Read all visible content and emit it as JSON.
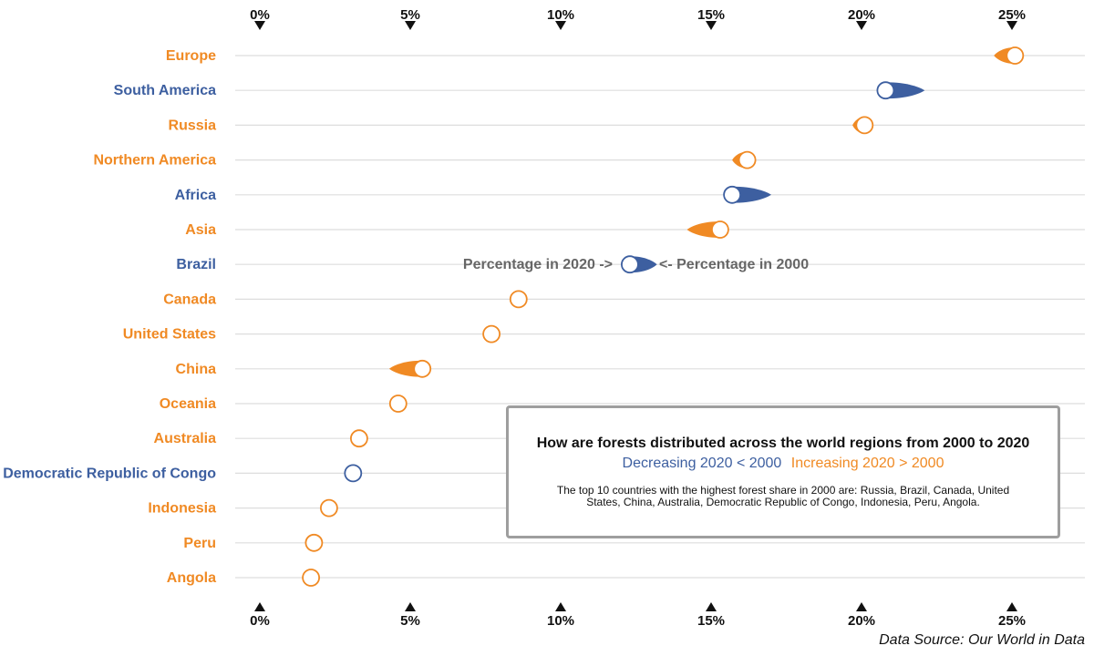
{
  "chart_data": {
    "type": "dumbbell",
    "title": "How are forests distributed across the world regions from 2000 to 2020",
    "legend": {
      "decreasing": "Decreasing 2020 < 2000",
      "increasing": "Increasing 2020 > 2000"
    },
    "note": "The top 10 countries with the highest forest share in 2000 are: Russia, Brazil, Canada, United States, China, Australia, Democratic Republic of Congo, Indonesia, Peru, Angola.",
    "source": "Data Source: Our World in Data",
    "annotations": {
      "left": "Percentage in 2020 ->",
      "right": "<- Percentage in 2000"
    },
    "xticks": [
      0,
      5,
      10,
      15,
      20,
      25
    ],
    "xtick_labels": [
      "0%",
      "5%",
      "10%",
      "15%",
      "20%",
      "25%"
    ],
    "xlim": [
      0,
      27.5
    ],
    "colors": {
      "decreasing": "#3d5fa0",
      "increasing": "#f08a24",
      "grid": "#dddddd",
      "tick": "#111111"
    },
    "categories": [
      "Europe",
      "South America",
      "Russia",
      "Northern America",
      "Africa",
      "Asia",
      "Brazil",
      "Canada",
      "United States",
      "China",
      "Oceania",
      "Australia",
      "Democratic Republic of Congo",
      "Indonesia",
      "Peru",
      "Angola"
    ],
    "series": [
      {
        "name": "2000",
        "values": [
          24.4,
          22.1,
          19.7,
          15.7,
          17.0,
          14.2,
          13.2,
          8.5,
          7.6,
          4.3,
          4.5,
          3.2,
          3.3,
          2.2,
          1.7,
          1.6
        ]
      },
      {
        "name": "2020",
        "values": [
          25.1,
          20.8,
          20.1,
          16.2,
          15.7,
          15.3,
          12.3,
          8.6,
          7.7,
          5.4,
          4.6,
          3.3,
          3.1,
          2.3,
          1.8,
          1.7
        ]
      }
    ]
  }
}
